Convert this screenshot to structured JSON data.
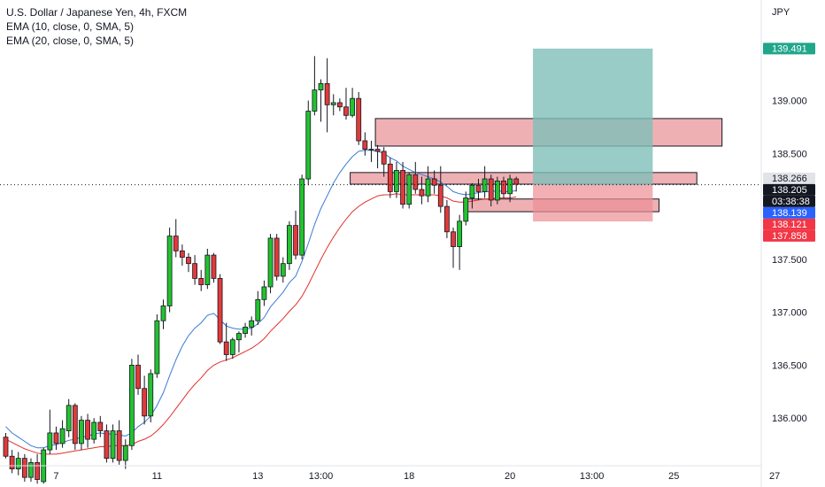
{
  "legend": {
    "title": "U.S. Dollar / Japanese Yen, 4h, FXCM",
    "ema1": "EMA (10, close, 0, SMA, 5)",
    "ema2": "EMA (20, close, 0, SMA, 5)"
  },
  "currency": "JPY",
  "colors": {
    "up": "#22c32e",
    "down": "#e23a3a",
    "ema_fast": "#3a7bd5",
    "ema_slow": "#e0312c",
    "zone_fill": "#e9969b",
    "target_fill": "#7fbfb8",
    "stop_fill": "#ec8f94"
  },
  "price_tags": [
    {
      "label": "139.491",
      "value": 139.491,
      "color": "#20a68a",
      "text_color": "#ffffff"
    },
    {
      "label": "138.266",
      "value": 138.266,
      "color": "#e1e3e8",
      "text_color": "#131722"
    },
    {
      "label": "138.205",
      "value": 138.205,
      "color": "#131722",
      "text_color": "#ffffff"
    },
    {
      "label": "03:38:38",
      "value": 138.15,
      "color": "#131722",
      "text_color": "#ffffff"
    },
    {
      "label": "138.139",
      "value": 138.139,
      "color": "#2962ff",
      "text_color": "#ffffff"
    },
    {
      "label": "138.121",
      "value": 138.121,
      "color": "#f23645",
      "text_color": "#ffffff"
    },
    {
      "label": "137.858",
      "value": 137.858,
      "color": "#f23645",
      "text_color": "#ffffff"
    }
  ],
  "chart_data": {
    "type": "candlestick",
    "title": "U.S. Dollar / Japanese Yen, 4h, FXCM",
    "ylim": [
      135.55,
      139.95
    ],
    "y_ticks": [
      "136.000",
      "136.500",
      "137.000",
      "137.500",
      "138.000",
      "138.500",
      "139.000"
    ],
    "x_ticks": [
      {
        "label": "7",
        "idx": 8
      },
      {
        "label": "11",
        "idx": 24
      },
      {
        "label": "13",
        "idx": 40
      },
      {
        "label": "13:00",
        "idx": 50
      },
      {
        "label": "18",
        "idx": 64
      },
      {
        "label": "20",
        "idx": 80
      },
      {
        "label": "13:00",
        "idx": 93
      },
      {
        "label": "25",
        "idx": 106
      },
      {
        "label": "27",
        "idx": 122
      }
    ],
    "last_price": 138.205,
    "candles": [
      [
        135.82,
        135.86,
        135.62,
        135.64
      ],
      [
        135.64,
        135.7,
        135.48,
        135.52
      ],
      [
        135.52,
        135.68,
        135.46,
        135.62
      ],
      [
        135.62,
        135.66,
        135.4,
        135.44
      ],
      [
        135.44,
        135.62,
        135.4,
        135.58
      ],
      [
        135.58,
        135.66,
        135.38,
        135.42
      ],
      [
        135.4,
        135.72,
        135.38,
        135.7
      ],
      [
        135.7,
        136.08,
        135.66,
        135.86
      ],
      [
        135.86,
        135.92,
        135.7,
        135.76
      ],
      [
        135.76,
        135.98,
        135.72,
        135.9
      ],
      [
        135.88,
        136.18,
        135.82,
        136.12
      ],
      [
        136.12,
        136.14,
        135.7,
        135.76
      ],
      [
        135.76,
        136.02,
        135.7,
        135.98
      ],
      [
        135.98,
        136.04,
        135.72,
        135.8
      ],
      [
        135.8,
        136.0,
        135.76,
        135.96
      ],
      [
        135.96,
        136.02,
        135.82,
        135.88
      ],
      [
        135.88,
        135.94,
        135.58,
        135.62
      ],
      [
        135.62,
        135.94,
        135.58,
        135.88
      ],
      [
        135.88,
        135.98,
        135.56,
        135.6
      ],
      [
        135.6,
        135.8,
        135.52,
        135.74
      ],
      [
        135.74,
        136.56,
        135.7,
        136.5
      ],
      [
        136.5,
        136.6,
        136.22,
        136.28
      ],
      [
        136.28,
        136.4,
        135.94,
        136.02
      ],
      [
        136.02,
        136.46,
        135.96,
        136.42
      ],
      [
        136.42,
        136.98,
        136.38,
        136.92
      ],
      [
        136.92,
        137.12,
        136.84,
        137.06
      ],
      [
        137.06,
        137.8,
        137.0,
        137.72
      ],
      [
        137.72,
        137.88,
        137.52,
        137.58
      ],
      [
        137.58,
        137.64,
        137.44,
        137.52
      ],
      [
        137.52,
        137.56,
        137.38,
        137.46
      ],
      [
        137.46,
        137.54,
        137.26,
        137.32
      ],
      [
        137.32,
        137.4,
        137.2,
        137.26
      ],
      [
        137.26,
        137.6,
        137.22,
        137.54
      ],
      [
        137.54,
        137.56,
        137.28,
        137.32
      ],
      [
        137.32,
        137.36,
        136.7,
        136.72
      ],
      [
        136.72,
        136.9,
        136.54,
        136.6
      ],
      [
        136.6,
        136.76,
        136.56,
        136.74
      ],
      [
        136.74,
        136.82,
        136.62,
        136.8
      ],
      [
        136.8,
        136.9,
        136.76,
        136.86
      ],
      [
        136.86,
        136.96,
        136.78,
        136.92
      ],
      [
        136.92,
        137.2,
        136.88,
        137.12
      ],
      [
        137.12,
        137.3,
        137.06,
        137.24
      ],
      [
        137.24,
        137.74,
        137.18,
        137.7
      ],
      [
        137.7,
        137.74,
        137.3,
        137.34
      ],
      [
        137.34,
        137.52,
        137.28,
        137.46
      ],
      [
        137.46,
        137.86,
        137.4,
        137.82
      ],
      [
        137.82,
        137.96,
        137.5,
        137.54
      ],
      [
        137.54,
        138.3,
        137.5,
        138.26
      ],
      [
        138.26,
        139.0,
        138.2,
        138.9
      ],
      [
        138.9,
        139.42,
        138.86,
        139.1
      ],
      [
        139.1,
        139.2,
        138.8,
        139.16
      ],
      [
        139.16,
        139.4,
        138.7,
        138.96
      ],
      [
        138.96,
        139.06,
        138.86,
        138.98
      ],
      [
        138.98,
        139.02,
        138.9,
        138.94
      ],
      [
        138.94,
        139.12,
        138.82,
        138.86
      ],
      [
        138.86,
        139.12,
        138.84,
        139.02
      ],
      [
        139.02,
        139.08,
        138.58,
        138.62
      ],
      [
        138.62,
        138.7,
        138.48,
        138.54
      ],
      [
        138.54,
        138.62,
        138.42,
        138.54
      ],
      [
        138.54,
        138.58,
        138.36,
        138.52
      ],
      [
        138.52,
        138.56,
        138.28,
        138.4
      ],
      [
        138.4,
        138.46,
        138.08,
        138.14
      ],
      [
        138.14,
        138.42,
        138.08,
        138.34
      ],
      [
        138.34,
        138.42,
        137.98,
        138.02
      ],
      [
        138.02,
        138.32,
        137.98,
        138.3
      ],
      [
        138.3,
        138.42,
        138.12,
        138.16
      ],
      [
        138.16,
        138.28,
        138.02,
        138.1
      ],
      [
        138.1,
        138.38,
        138.04,
        138.26
      ],
      [
        138.26,
        138.34,
        138.12,
        138.2
      ],
      [
        138.2,
        138.38,
        137.94,
        138.0
      ],
      [
        138.0,
        138.06,
        137.7,
        137.76
      ],
      [
        137.76,
        137.8,
        137.42,
        137.62
      ],
      [
        137.62,
        137.92,
        137.4,
        137.86
      ],
      [
        137.86,
        138.14,
        137.82,
        138.08
      ],
      [
        138.08,
        138.22,
        137.98,
        138.2
      ],
      [
        138.2,
        138.26,
        138.06,
        138.14
      ],
      [
        138.14,
        138.38,
        138.08,
        138.26
      ],
      [
        138.26,
        138.3,
        138.0,
        138.06
      ],
      [
        138.06,
        138.28,
        138.02,
        138.24
      ],
      [
        138.24,
        138.28,
        138.08,
        138.12
      ],
      [
        138.12,
        138.3,
        138.04,
        138.26
      ],
      [
        138.26,
        138.28,
        138.14,
        138.21
      ]
    ],
    "ema_fast": [
      135.92,
      135.86,
      135.82,
      135.78,
      135.74,
      135.72,
      135.72,
      135.74,
      135.75,
      135.77,
      135.79,
      135.8,
      135.82,
      135.83,
      135.85,
      135.86,
      135.85,
      135.85,
      135.84,
      135.83,
      135.86,
      135.92,
      135.96,
      136.02,
      136.12,
      136.24,
      136.4,
      136.55,
      136.68,
      136.78,
      136.85,
      136.9,
      136.97,
      136.99,
      136.93,
      136.87,
      136.85,
      136.84,
      136.84,
      136.85,
      136.89,
      136.95,
      137.05,
      137.12,
      137.19,
      137.28,
      137.34,
      137.48,
      137.65,
      137.83,
      137.98,
      138.1,
      138.22,
      138.32,
      138.4,
      138.47,
      138.52,
      138.53,
      138.53,
      138.52,
      138.5,
      138.46,
      138.43,
      138.38,
      138.35,
      138.32,
      138.3,
      138.28,
      138.26,
      138.23,
      138.19,
      138.14,
      138.12,
      138.11,
      138.12,
      138.13,
      138.14,
      138.14,
      138.15,
      138.14,
      138.14,
      138.15
    ],
    "ema_slow": [
      135.8,
      135.77,
      135.74,
      135.71,
      135.69,
      135.67,
      135.66,
      135.66,
      135.66,
      135.67,
      135.68,
      135.69,
      135.7,
      135.71,
      135.72,
      135.73,
      135.73,
      135.74,
      135.74,
      135.74,
      135.75,
      135.78,
      135.8,
      135.83,
      135.88,
      135.94,
      136.01,
      136.09,
      136.17,
      136.25,
      136.32,
      136.38,
      136.45,
      136.5,
      136.53,
      136.55,
      136.57,
      136.6,
      136.63,
      136.66,
      136.7,
      136.75,
      136.82,
      136.88,
      136.94,
      137.01,
      137.07,
      137.15,
      137.26,
      137.38,
      137.5,
      137.61,
      137.71,
      137.8,
      137.88,
      137.95,
      138.0,
      138.04,
      138.07,
      138.1,
      138.11,
      138.11,
      138.12,
      138.11,
      138.11,
      138.11,
      138.11,
      138.11,
      138.11,
      138.1,
      138.08,
      138.05,
      138.04,
      138.04,
      138.05,
      138.06,
      138.07,
      138.07,
      138.08,
      138.08,
      138.08,
      138.09
    ],
    "zones": [
      {
        "name": "upper-supply-zone",
        "x0": 59,
        "x1": 114,
        "y0": 138.57,
        "y1": 138.83
      },
      {
        "name": "middle-zone",
        "x0": 55,
        "x1": 110,
        "y0": 138.21,
        "y1": 138.32
      },
      {
        "name": "lower-zone",
        "x0": 73,
        "x1": 104,
        "y0": 137.95,
        "y1": 138.07
      }
    ],
    "position": {
      "x0": 84,
      "x1": 103,
      "entry": 138.205,
      "target": 139.491,
      "stop": 137.858
    }
  }
}
